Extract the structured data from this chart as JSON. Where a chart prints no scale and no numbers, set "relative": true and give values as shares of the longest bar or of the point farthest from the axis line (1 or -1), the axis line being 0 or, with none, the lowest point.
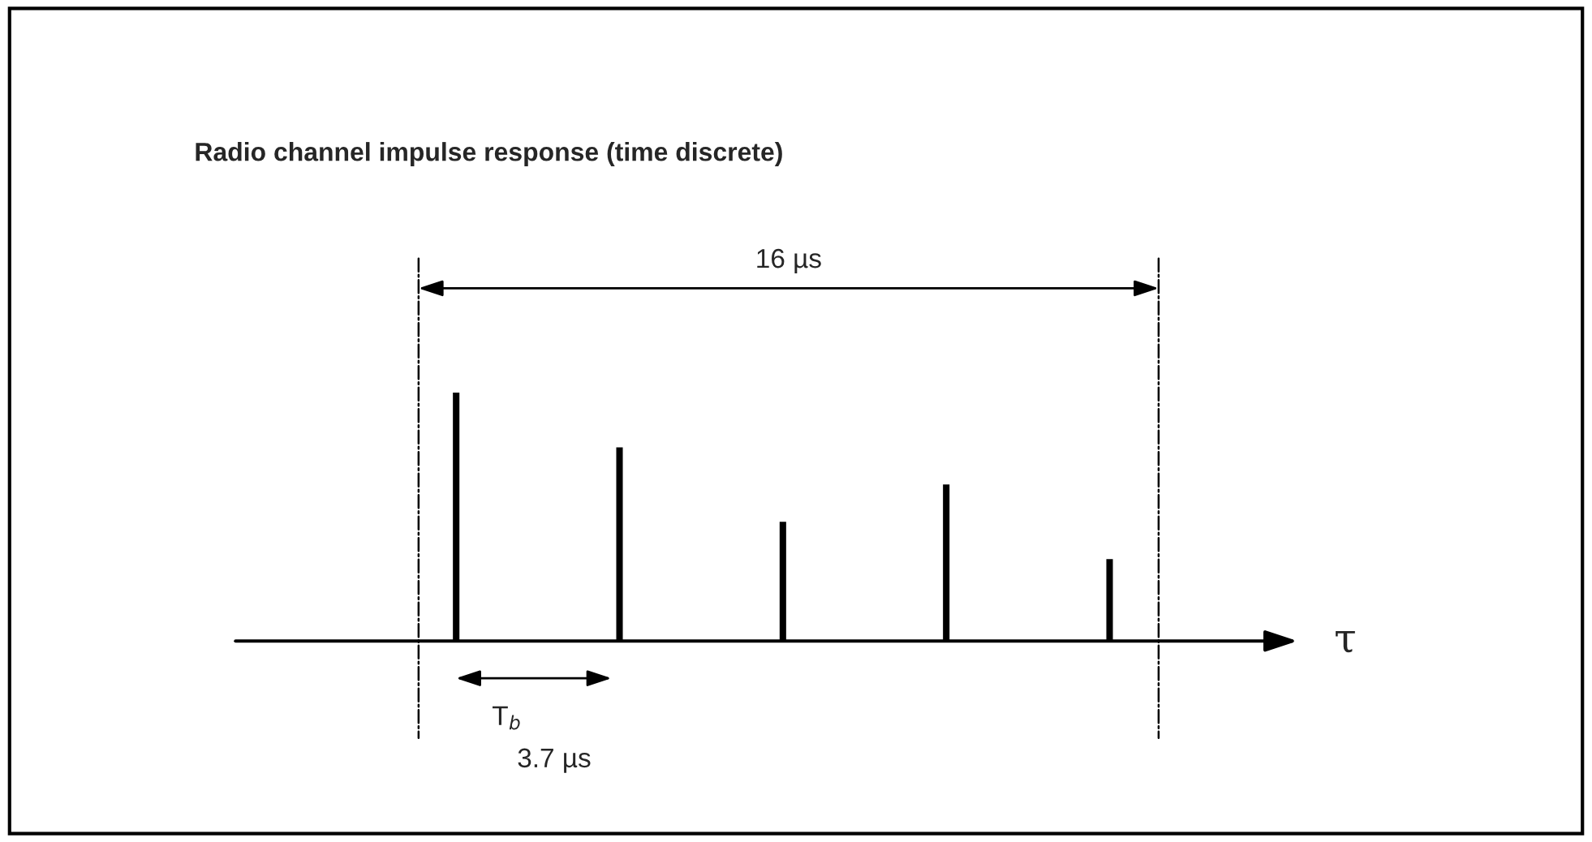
{
  "chart_data": {
    "type": "bar",
    "title": "Radio channel impulse response (time discrete)",
    "xlabel": "τ",
    "relative": true,
    "categories": [
      null,
      null,
      null,
      null,
      null
    ],
    "values": [
      1,
      0.78,
      0.48,
      0.63,
      0.33
    ],
    "color": "#000000",
    "annotations": [
      "16 µs",
      "T$_{b}$",
      "3.7 µs"
    ],
    "grid": false,
    "legend": false
  }
}
